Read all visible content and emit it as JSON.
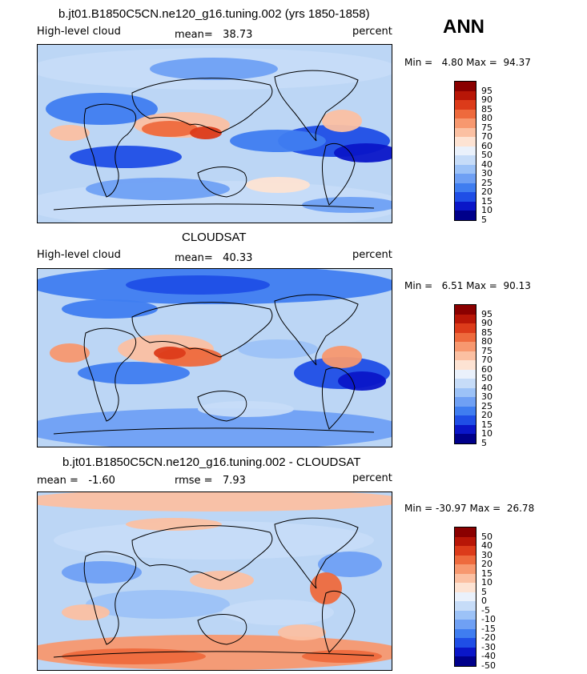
{
  "season": "ANN",
  "colors": {
    "abs": [
      "#00008a",
      "#0a16c8",
      "#1f4ee6",
      "#3f7df0",
      "#6fa0f4",
      "#9cc2f7",
      "#c6dcf8",
      "#eaf1fb",
      "#fde3d3",
      "#fbc0a2",
      "#f7986f",
      "#ee6a3d",
      "#dc3b1a",
      "#b81607",
      "#8a0000"
    ],
    "diff": [
      "#00008a",
      "#0a16c8",
      "#1f4ee6",
      "#3f7df0",
      "#6fa0f4",
      "#9cc2f7",
      "#c6dcf8",
      "#eaf1fb",
      "#fde3d3",
      "#fbc0a2",
      "#f7986f",
      "#ee6a3d",
      "#dc3b1a",
      "#b81607",
      "#8a0000"
    ]
  },
  "chart_data": [
    {
      "type": "heatmap",
      "title": "b.jt01.B1850C5CN.ne120_g16.tuning.002 (yrs 1850-1858)",
      "variable": "High-level cloud",
      "mean_label": "mean=",
      "mean": "38.73",
      "units": "percent",
      "min_label": "Min =",
      "min": "4.80",
      "max_label": "Max =",
      "max": "94.37",
      "colorbar_levels": [
        "95",
        "90",
        "85",
        "80",
        "75",
        "70",
        "60",
        "50",
        "40",
        "30",
        "25",
        "20",
        "15",
        "10",
        "5"
      ]
    },
    {
      "type": "heatmap",
      "title": "CLOUDSAT",
      "variable": "High-level cloud",
      "mean_label": "mean=",
      "mean": "40.33",
      "units": "percent",
      "min_label": "Min =",
      "min": "6.51",
      "max_label": "Max =",
      "max": "90.13",
      "colorbar_levels": [
        "95",
        "90",
        "85",
        "80",
        "75",
        "70",
        "60",
        "50",
        "40",
        "30",
        "25",
        "20",
        "15",
        "10",
        "5"
      ]
    },
    {
      "type": "heatmap",
      "title": "b.jt01.B1850C5CN.ne120_g16.tuning.002 - CLOUDSAT",
      "mean_label": "mean =",
      "mean": "-1.60",
      "rmse_label": "rmse =",
      "rmse": "7.93",
      "units": "percent",
      "min_label": "Min =",
      "min": "-30.97",
      "max_label": "Max =",
      "max": "26.78",
      "colorbar_levels": [
        "50",
        "40",
        "30",
        "20",
        "15",
        "10",
        "5",
        "0",
        "-5",
        "-10",
        "-15",
        "-20",
        "-30",
        "-40",
        "-50"
      ]
    }
  ]
}
